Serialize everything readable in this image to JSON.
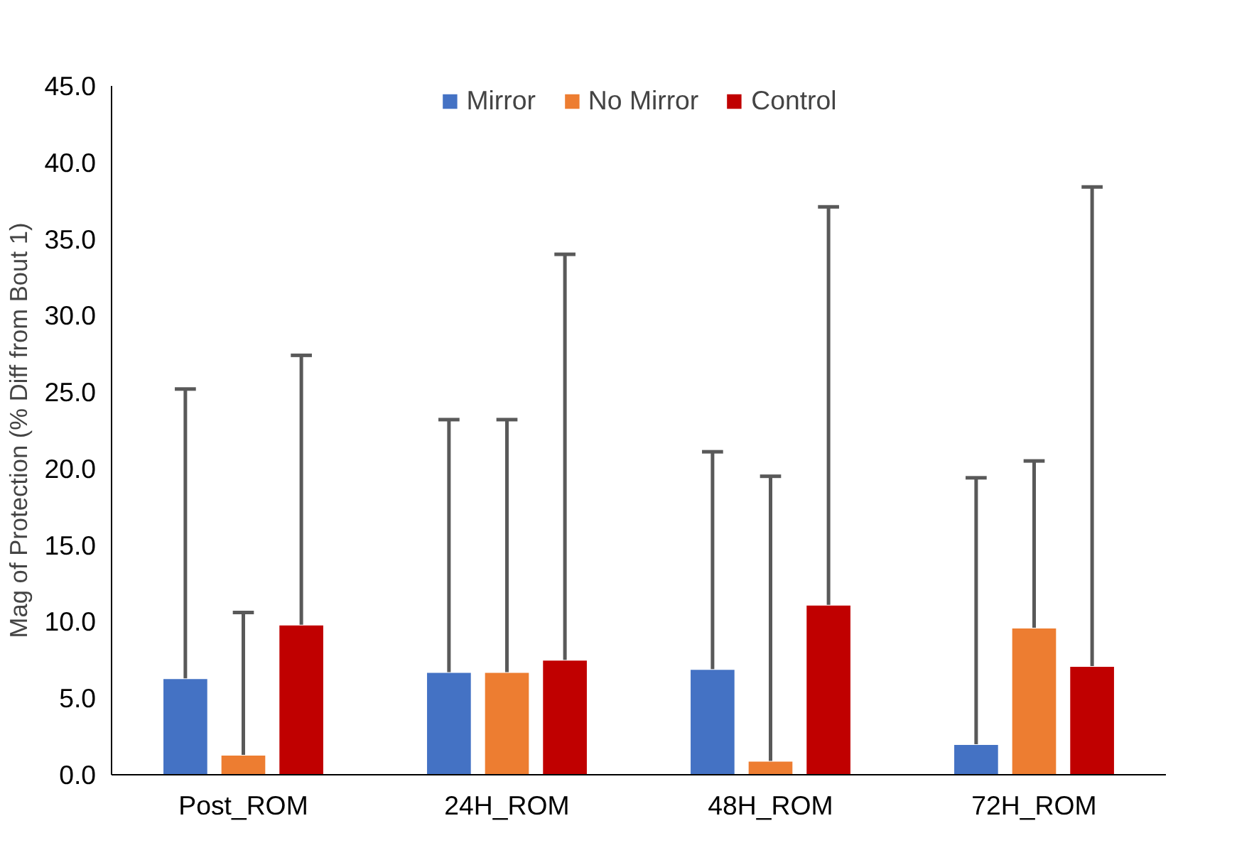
{
  "chart_data": {
    "type": "bar",
    "ylabel": "Mag of Protection (% Diff from Bout 1)",
    "categories": [
      "Post_ROM",
      "24H_ROM",
      "48H_ROM",
      "72H_ROM"
    ],
    "series": [
      {
        "name": "Mirror",
        "color": "#4472c4",
        "values": [
          6.3,
          6.7,
          6.9,
          2.0
        ],
        "errors": [
          [
            6.3,
            25.2
          ],
          [
            6.7,
            23.2
          ],
          [
            6.9,
            21.1
          ],
          [
            2.0,
            19.4
          ]
        ]
      },
      {
        "name": "No Mirror",
        "color": "#ed7d31",
        "values": [
          1.3,
          6.7,
          0.9,
          9.6
        ],
        "errors": [
          [
            1.3,
            10.6
          ],
          [
            6.7,
            23.2
          ],
          [
            0.9,
            19.5
          ],
          [
            9.6,
            20.5
          ]
        ]
      },
      {
        "name": "Control",
        "color": "#c00000",
        "values": [
          9.8,
          7.5,
          11.1,
          7.1
        ],
        "errors": [
          [
            9.8,
            27.4
          ],
          [
            7.5,
            34.0
          ],
          [
            11.1,
            37.1
          ],
          [
            7.1,
            38.4
          ]
        ]
      }
    ],
    "ylim": [
      0,
      45
    ],
    "yticks": [
      {
        "value": 0,
        "label": "0.0"
      },
      {
        "value": 5,
        "label": "5.0"
      },
      {
        "value": 10,
        "label": "10.0"
      },
      {
        "value": 15,
        "label": "15.0"
      },
      {
        "value": 20,
        "label": "20.0"
      },
      {
        "value": 25,
        "label": "25.0"
      },
      {
        "value": 30,
        "label": "30.0"
      },
      {
        "value": 35,
        "label": "35.0"
      },
      {
        "value": 40,
        "label": "40.0"
      },
      {
        "value": 45,
        "label": "45.0"
      }
    ],
    "grid": false,
    "legend": "top"
  }
}
